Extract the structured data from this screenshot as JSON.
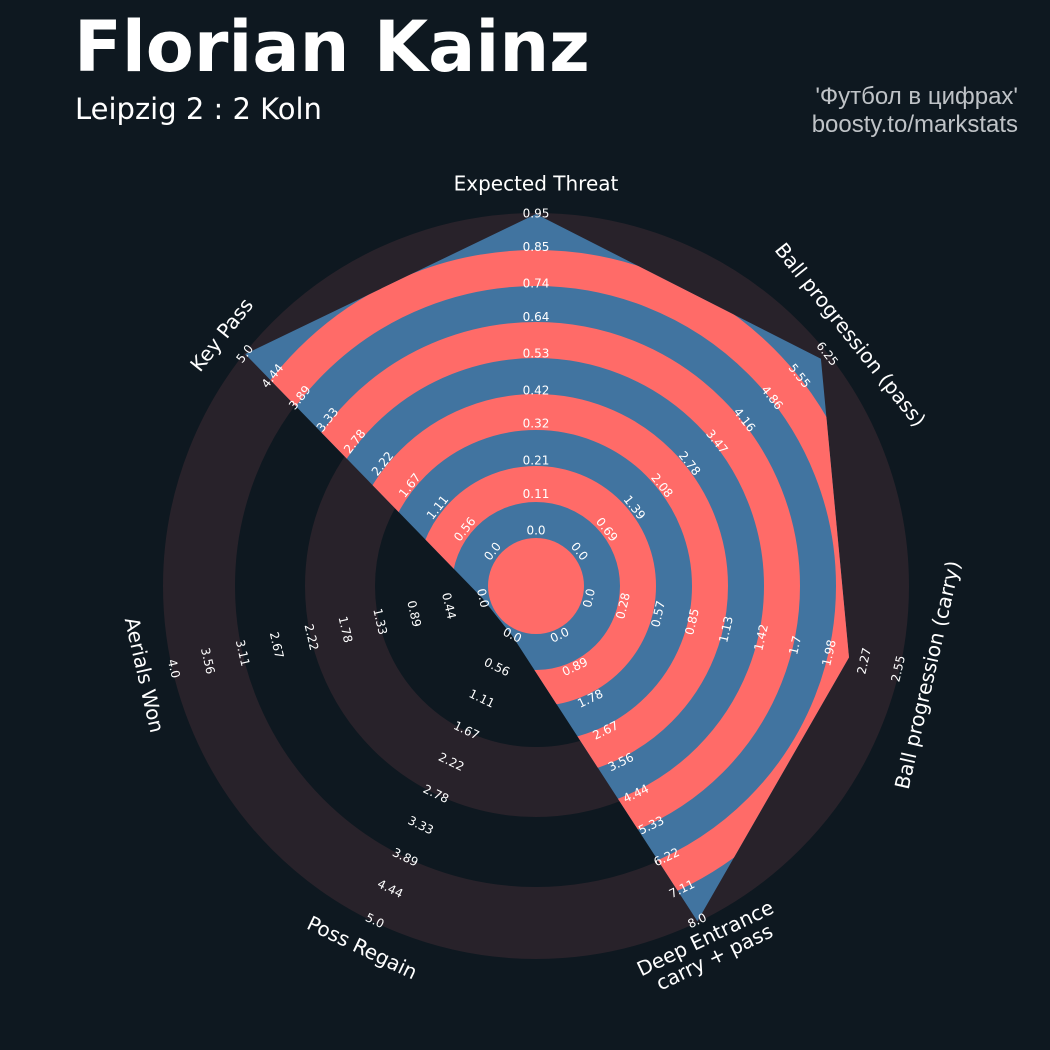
{
  "chart_data": {
    "type": "radar",
    "title": "Florian Kainz",
    "subtitle": "Leipzig 2 : 2 Koln",
    "credits": [
      "'Футбол в цифрах'",
      "boosty.to/markstats"
    ],
    "categories": [
      "Expected Threat",
      "Ball progression (pass)",
      "Ball progression (carry)",
      "Deep Entrance\ncarry + pass",
      "Poss Regain",
      "Aerials Won",
      "Key Pass"
    ],
    "values": [
      0.95,
      6.1,
      2.14,
      8.0,
      0,
      0,
      5.0
    ],
    "color": "#4174a0",
    "ring_color": "#ff6b68",
    "axes": [
      {
        "ylim": [
          0,
          0.95
        ],
        "yticks": [
          {
            "value": 0,
            "label": "0.0"
          },
          0.11,
          0.21,
          0.32,
          0.42,
          0.53,
          0.64,
          0.74,
          0.85,
          0.95
        ]
      },
      {
        "ylim": [
          0,
          6.25
        ],
        "yticks": [
          {
            "value": 0,
            "label": "0.0"
          },
          0.69,
          1.39,
          2.08,
          2.78,
          3.47,
          4.16,
          4.86,
          5.55,
          6.25
        ]
      },
      {
        "ylim": [
          0,
          2.55
        ],
        "yticks": [
          {
            "value": 0,
            "label": "0.0"
          },
          0.28,
          0.57,
          0.85,
          1.13,
          1.42,
          1.7,
          1.98,
          2.27,
          2.55
        ]
      },
      {
        "ylim": [
          0,
          8.0
        ],
        "yticks": [
          {
            "value": 0,
            "label": "0.0"
          },
          0.89,
          1.78,
          2.67,
          3.56,
          4.44,
          5.33,
          6.22,
          7.11,
          {
            "value": 8,
            "label": "8.0"
          }
        ]
      },
      {
        "ylim": [
          0,
          5.0
        ],
        "yticks": [
          {
            "value": 0,
            "label": "0.0"
          },
          0.56,
          1.11,
          1.67,
          2.22,
          2.78,
          3.33,
          3.89,
          4.44,
          {
            "value": 5,
            "label": "5.0"
          }
        ]
      },
      {
        "ylim": [
          0,
          4.0
        ],
        "yticks": [
          {
            "value": 0,
            "label": "0.0"
          },
          0.44,
          0.89,
          1.33,
          1.78,
          2.22,
          2.67,
          3.11,
          3.56,
          {
            "value": 4,
            "label": "4.0"
          }
        ]
      },
      {
        "ylim": [
          0,
          5.0
        ],
        "yticks": [
          {
            "value": 0,
            "label": "0.0"
          },
          0.56,
          1.11,
          1.67,
          2.22,
          2.78,
          3.33,
          3.89,
          4.44,
          {
            "value": 5,
            "label": "5.0"
          }
        ]
      }
    ]
  }
}
